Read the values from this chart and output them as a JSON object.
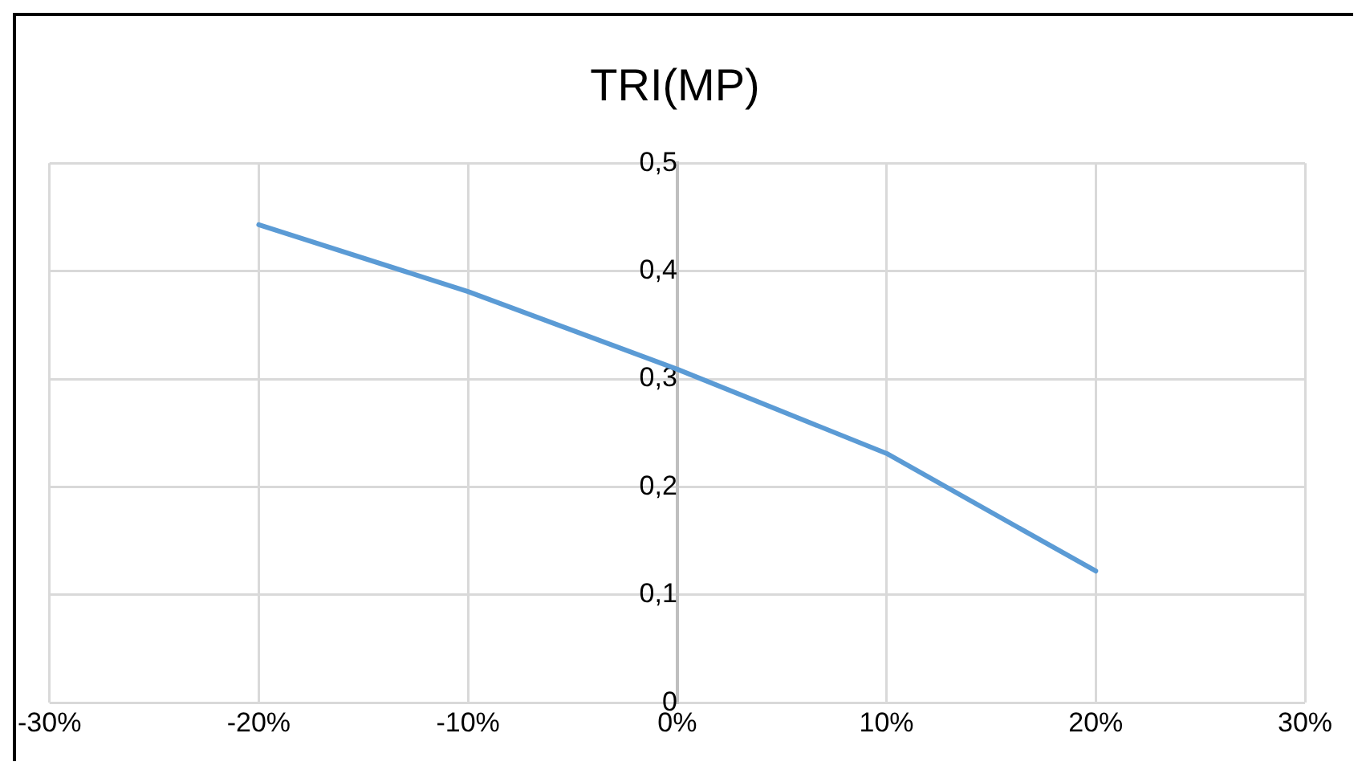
{
  "chart_data": {
    "type": "line",
    "title": "TRI(MP)",
    "x": [
      -20,
      -10,
      0,
      10,
      20
    ],
    "series": [
      {
        "color": "#5b9bd5",
        "values": [
          0.443,
          0.381,
          0.309,
          0.231,
          0.122
        ]
      }
    ],
    "xlim": [
      -30,
      30
    ],
    "xticks": [
      {
        "value": -30,
        "label": "-30%"
      },
      {
        "value": -20,
        "label": "-20%"
      },
      {
        "value": -10,
        "label": "-10%"
      },
      {
        "value": 0,
        "label": "0%"
      },
      {
        "value": 10,
        "label": "10%"
      },
      {
        "value": 20,
        "label": "20%"
      },
      {
        "value": 30,
        "label": "30%"
      }
    ],
    "ylim": [
      0,
      0.5
    ],
    "yticks": [
      0,
      {
        "value": 0.1,
        "label": "0,1"
      },
      {
        "value": 0.2,
        "label": "0,2"
      },
      {
        "value": 0.3,
        "label": "0,3"
      },
      {
        "value": 0.4,
        "label": "0,4"
      },
      {
        "value": 0.5,
        "label": "0,5"
      }
    ],
    "grid": true,
    "legend": false,
    "marker": "none",
    "line_style": "solid"
  }
}
